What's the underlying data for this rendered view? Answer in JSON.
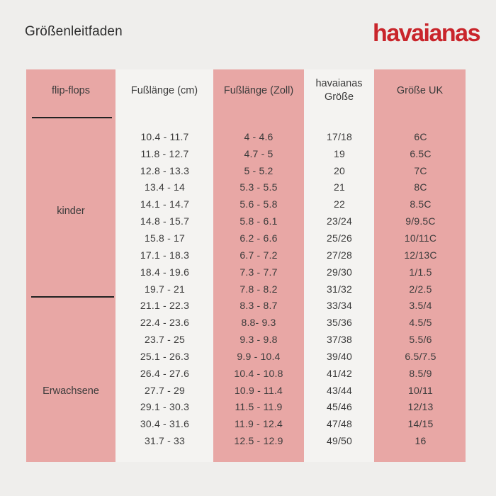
{
  "header": {
    "title": "Größenleitfaden",
    "brand": "havaianas"
  },
  "colors": {
    "background": "#efeeec",
    "pink_column": "#e8a7a5",
    "light_column": "#f4f3f1",
    "text": "#3b3b3b",
    "brand_red": "#c9252b",
    "divider": "#222222"
  },
  "chart_data": {
    "type": "table",
    "title": "Größenleitfaden",
    "columns": [
      "flip-flops",
      "Fußlänge (cm)",
      "Fußlänge (Zoll)",
      "havaianas Größe",
      "Größe UK"
    ],
    "column4_lines": [
      "havaianas",
      "Größe"
    ],
    "sections": [
      {
        "label": "kinder",
        "rows": "1-10"
      },
      {
        "label": "Erwachsene",
        "rows": "11-19"
      }
    ],
    "rows": [
      {
        "cm": "10.4 - 11.7",
        "zoll": "4 - 4.6",
        "size": "17/18",
        "uk": "6C"
      },
      {
        "cm": "11.8 - 12.7",
        "zoll": "4.7 - 5",
        "size": "19",
        "uk": "6.5C"
      },
      {
        "cm": "12.8 - 13.3",
        "zoll": "5 - 5.2",
        "size": "20",
        "uk": "7C"
      },
      {
        "cm": "13.4 - 14",
        "zoll": "5.3 - 5.5",
        "size": "21",
        "uk": "8C"
      },
      {
        "cm": "14.1 - 14.7",
        "zoll": "5.6 - 5.8",
        "size": "22",
        "uk": "8.5C"
      },
      {
        "cm": "14.8 - 15.7",
        "zoll": "5.8 - 6.1",
        "size": "23/24",
        "uk": "9/9.5C"
      },
      {
        "cm": "15.8 - 17",
        "zoll": "6.2 - 6.6",
        "size": "25/26",
        "uk": "10/11C"
      },
      {
        "cm": "17.1 - 18.3",
        "zoll": "6.7 - 7.2",
        "size": "27/28",
        "uk": "12/13C"
      },
      {
        "cm": "18.4 - 19.6",
        "zoll": "7.3 - 7.7",
        "size": "29/30",
        "uk": "1/1.5"
      },
      {
        "cm": "19.7 - 21",
        "zoll": "7.8 - 8.2",
        "size": "31/32",
        "uk": "2/2.5"
      },
      {
        "cm": "21.1 - 22.3",
        "zoll": "8.3 - 8.7",
        "size": "33/34",
        "uk": "3.5/4"
      },
      {
        "cm": "22.4 - 23.6",
        "zoll": "8.8- 9.3",
        "size": "35/36",
        "uk": "4.5/5"
      },
      {
        "cm": "23.7 - 25",
        "zoll": "9.3 - 9.8",
        "size": "37/38",
        "uk": "5.5/6"
      },
      {
        "cm": "25.1 - 26.3",
        "zoll": "9.9 - 10.4",
        "size": "39/40",
        "uk": "6.5/7.5"
      },
      {
        "cm": "26.4 - 27.6",
        "zoll": "10.4 - 10.8",
        "size": "41/42",
        "uk": "8.5/9"
      },
      {
        "cm": "27.7 - 29",
        "zoll": "10.9 - 11.4",
        "size": "43/44",
        "uk": "10/11"
      },
      {
        "cm": "29.1 - 30.3",
        "zoll": "11.5 - 11.9",
        "size": "45/46",
        "uk": "12/13"
      },
      {
        "cm": "30.4 - 31.6",
        "zoll": "11.9 - 12.4",
        "size": "47/48",
        "uk": "14/15"
      },
      {
        "cm": "31.7 - 33",
        "zoll": "12.5 - 12.9",
        "size": "49/50",
        "uk": "16"
      }
    ]
  }
}
